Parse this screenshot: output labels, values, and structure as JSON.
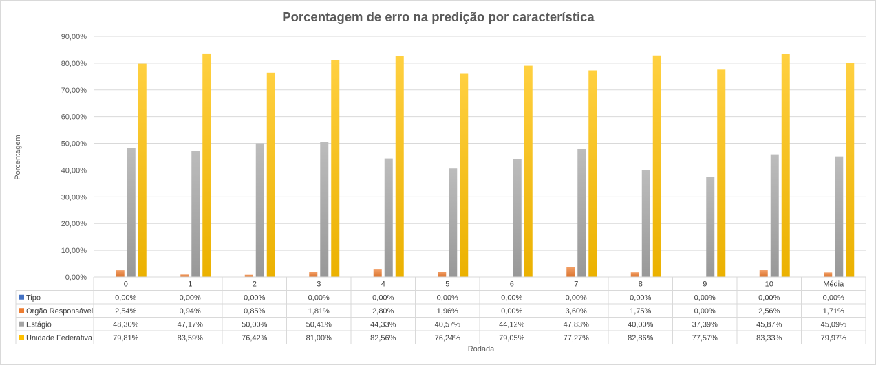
{
  "chart_data": {
    "type": "bar",
    "title": "Porcentagem de erro na predição por característica",
    "xlabel": "Rodada",
    "ylabel": "Porcentagem",
    "ylim": [
      0,
      90
    ],
    "ytick_step": 10,
    "ytick_labels": [
      "0,00%",
      "10,00%",
      "20,00%",
      "30,00%",
      "40,00%",
      "50,00%",
      "60,00%",
      "70,00%",
      "80,00%",
      "90,00%"
    ],
    "grid": true,
    "legend": "data-table-left",
    "categories": [
      "0",
      "1",
      "2",
      "3",
      "4",
      "5",
      "6",
      "7",
      "8",
      "9",
      "10",
      "Média"
    ],
    "series": [
      {
        "name": "Tipo",
        "color": "#4472c4",
        "values": [
          0,
          0,
          0,
          0,
          0,
          0,
          0,
          0,
          0,
          0,
          0,
          0
        ],
        "labels": [
          "0,00%",
          "0,00%",
          "0,00%",
          "0,00%",
          "0,00%",
          "0,00%",
          "0,00%",
          "0,00%",
          "0,00%",
          "0,00%",
          "0,00%",
          "0,00%"
        ]
      },
      {
        "name": "Orgão Responsável",
        "color": "#ed7d31",
        "values": [
          2.54,
          0.94,
          0.85,
          1.81,
          2.8,
          1.96,
          0.0,
          3.6,
          1.75,
          0.0,
          2.56,
          1.71
        ],
        "labels": [
          "2,54%",
          "0,94%",
          "0,85%",
          "1,81%",
          "2,80%",
          "1,96%",
          "0,00%",
          "3,60%",
          "1,75%",
          "0,00%",
          "2,56%",
          "1,71%"
        ]
      },
      {
        "name": "Estágio",
        "color": "#a5a5a5",
        "values": [
          48.3,
          47.17,
          50.0,
          50.41,
          44.33,
          40.57,
          44.12,
          47.83,
          40.0,
          37.39,
          45.87,
          45.09
        ],
        "labels": [
          "48,30%",
          "47,17%",
          "50,00%",
          "50,41%",
          "44,33%",
          "40,57%",
          "44,12%",
          "47,83%",
          "40,00%",
          "37,39%",
          "45,87%",
          "45,09%"
        ]
      },
      {
        "name": "Unidade Federativa",
        "color": "#ffc000",
        "values": [
          79.81,
          83.59,
          76.42,
          81.0,
          82.56,
          76.24,
          79.05,
          77.27,
          82.86,
          77.57,
          83.33,
          79.97
        ],
        "labels": [
          "79,81%",
          "83,59%",
          "76,42%",
          "81,00%",
          "82,56%",
          "76,24%",
          "79,05%",
          "77,27%",
          "82,86%",
          "77,57%",
          "83,33%",
          "79,97%"
        ]
      }
    ]
  }
}
